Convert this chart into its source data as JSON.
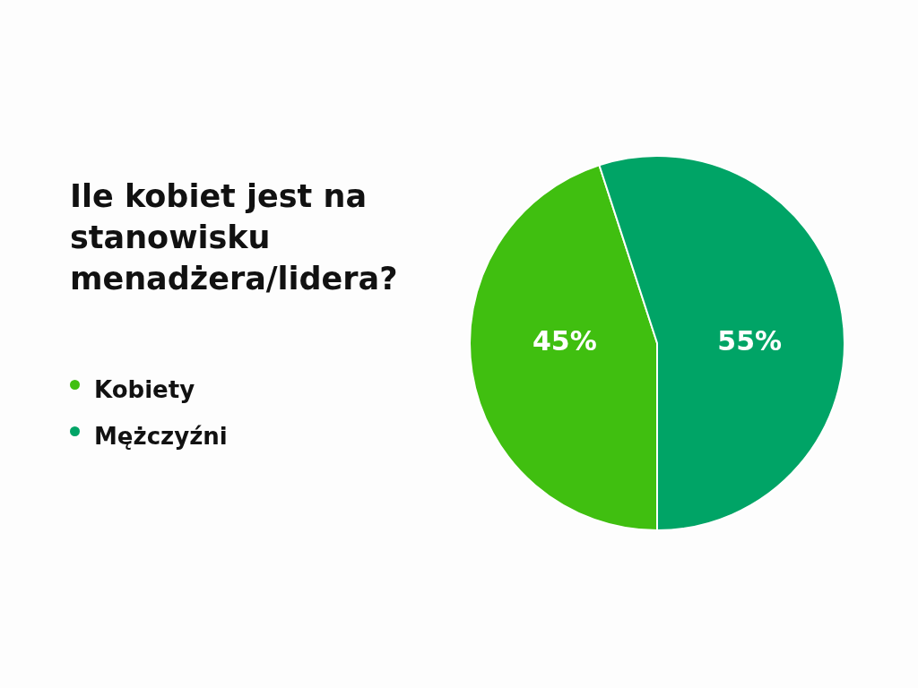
{
  "chart_data": {
    "type": "pie",
    "title": "Ile kobiet jest na stanowisku menadżera/lidera?",
    "categories": [
      "Kobiety",
      "Mężczyźni"
    ],
    "values": [
      45,
      55
    ],
    "colors": [
      "#40bf10",
      "#00a466"
    ],
    "value_labels": [
      "45%",
      "55%"
    ],
    "legend": "left"
  }
}
